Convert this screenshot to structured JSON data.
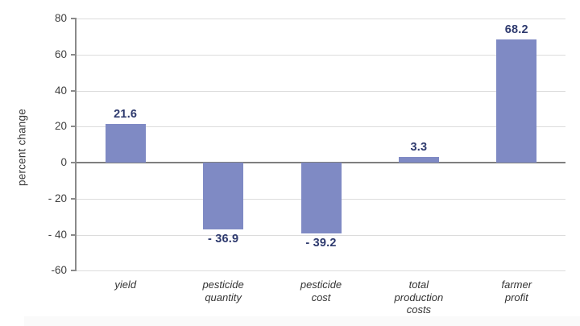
{
  "chart_data": {
    "type": "bar",
    "title": "",
    "xlabel": "",
    "ylabel": "percent change",
    "categories": [
      "yield",
      "pesticide\nquantity",
      "pesticide\ncost",
      "total\nproduction\ncosts",
      "farmer\nprofit"
    ],
    "values": [
      21.6,
      -36.9,
      -39.2,
      3.3,
      68.2
    ],
    "value_labels": [
      "21.6",
      "- 36.9",
      "- 39.2",
      "3.3",
      "68.2"
    ],
    "ylim": [
      -60,
      80
    ],
    "ytick_step": 20,
    "ytick_labels": [
      "80",
      "60",
      "40",
      "20",
      "0",
      "- 20",
      "- 40",
      "-60"
    ],
    "grid": true,
    "legend": false,
    "colors": {
      "bar": "#7f8ac4",
      "value_label": "#2e3a6e",
      "gridline": "#dcdcdc",
      "zero_line": "#7f7f7f",
      "axis": "#8a8a8a",
      "tick_label": "#404040",
      "category_label": "#333333",
      "background": "#ffffff"
    }
  }
}
